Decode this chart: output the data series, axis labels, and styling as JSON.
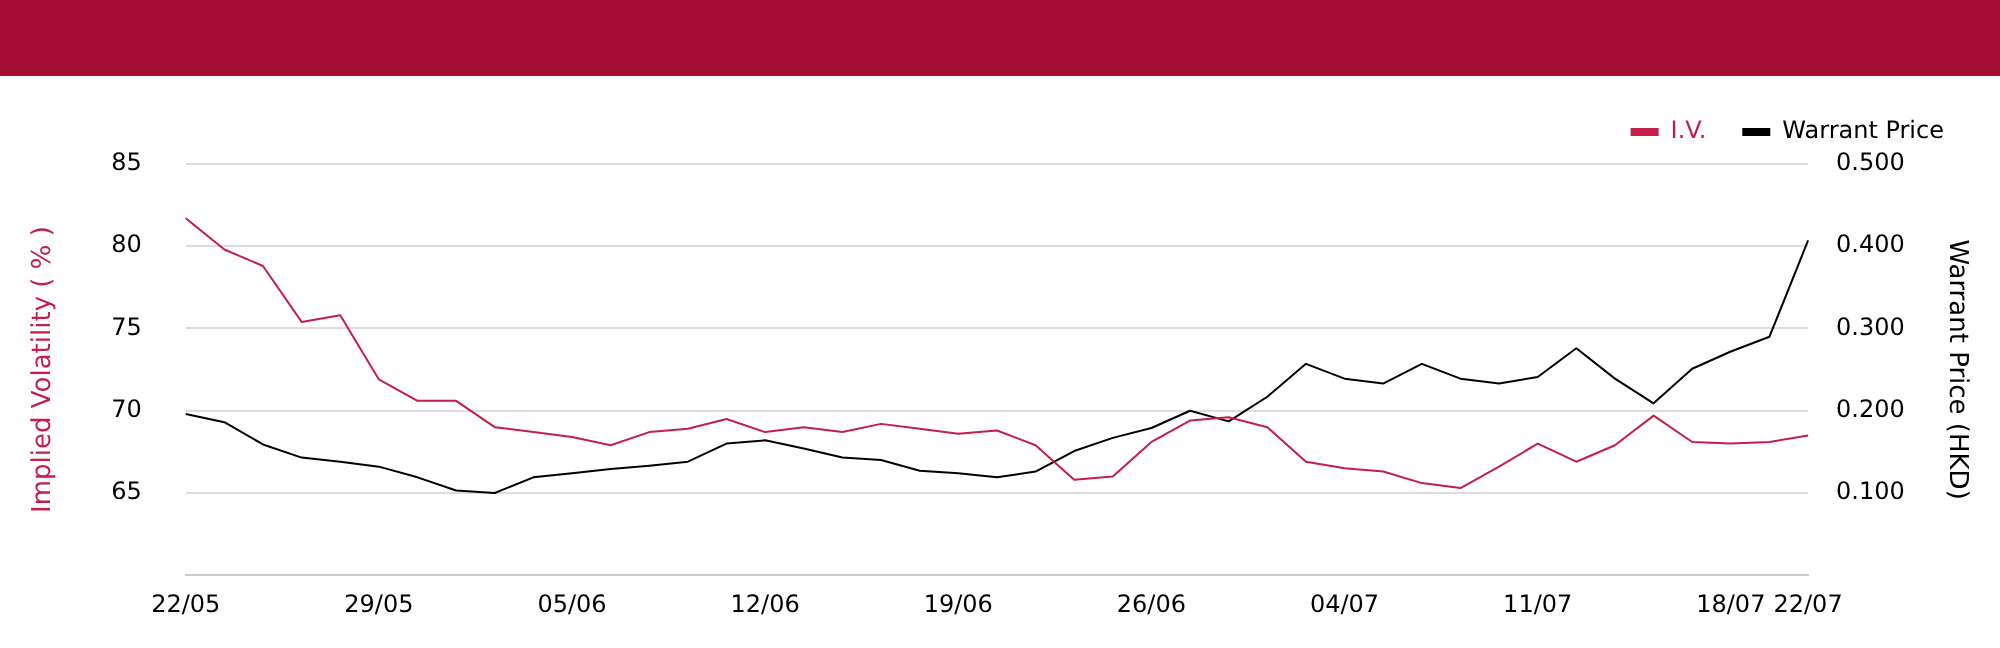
{
  "chart_data": {
    "type": "line",
    "ylabel": "Implied Volatility ( % )",
    "y2label": "Warrant Price (HKD)",
    "categories": [
      "22/05",
      null,
      null,
      null,
      null,
      "29/05",
      null,
      null,
      null,
      null,
      "05/06",
      null,
      null,
      null,
      null,
      "12/06",
      null,
      null,
      null,
      null,
      "19/06",
      null,
      null,
      null,
      null,
      "26/06",
      null,
      null,
      null,
      null,
      "04/07",
      null,
      null,
      null,
      null,
      "11/07",
      null,
      null,
      null,
      null,
      "18/07",
      null,
      "22/07"
    ],
    "series": [
      {
        "name": "I.V.",
        "color": "#c41e4a",
        "values": [
          81.7,
          79.8,
          78.8,
          75.4,
          75.8,
          71.9,
          70.6,
          70.6,
          69.0,
          68.7,
          68.4,
          67.9,
          68.7,
          68.9,
          69.5,
          68.7,
          69.0,
          68.7,
          69.2,
          68.9,
          68.6,
          68.8,
          67.9,
          65.8,
          66.0,
          68.1,
          69.4,
          69.6,
          69.0,
          66.9,
          66.5,
          66.3,
          65.6,
          65.3,
          66.6,
          68.0,
          66.9,
          67.9,
          69.7,
          68.1,
          68.0,
          68.1,
          68.5
        ]
      },
      {
        "name": "Warrant Price",
        "color": "#000000",
        "axis": "y2",
        "values": [
          0.196,
          0.186,
          0.159,
          0.143,
          0.138,
          0.132,
          0.119,
          0.103,
          0.1,
          0.119,
          0.124,
          0.129,
          0.133,
          0.138,
          0.16,
          0.164,
          0.154,
          0.143,
          0.14,
          0.127,
          0.124,
          0.119,
          0.126,
          0.151,
          0.167,
          0.179,
          0.2,
          0.187,
          0.217,
          0.257,
          0.239,
          0.233,
          0.257,
          0.239,
          0.233,
          0.241,
          0.276,
          0.239,
          0.209,
          0.251,
          0.272,
          0.29,
          0.407
        ]
      }
    ],
    "ylim": [
      60,
      85
    ],
    "yticks": [
      65,
      70,
      75,
      80,
      85
    ],
    "y2lim": [
      0,
      0.5
    ],
    "y2ticks": [
      {
        "value": 0.1,
        "label": "0.100"
      },
      {
        "value": 0.2,
        "label": "0.200"
      },
      {
        "value": 0.3,
        "label": "0.300"
      },
      {
        "value": 0.4,
        "label": "0.400"
      },
      {
        "value": 0.5,
        "label": "0.500"
      }
    ],
    "grid": "y",
    "legend": "top right",
    "marker": "none",
    "line_style": "solid"
  }
}
